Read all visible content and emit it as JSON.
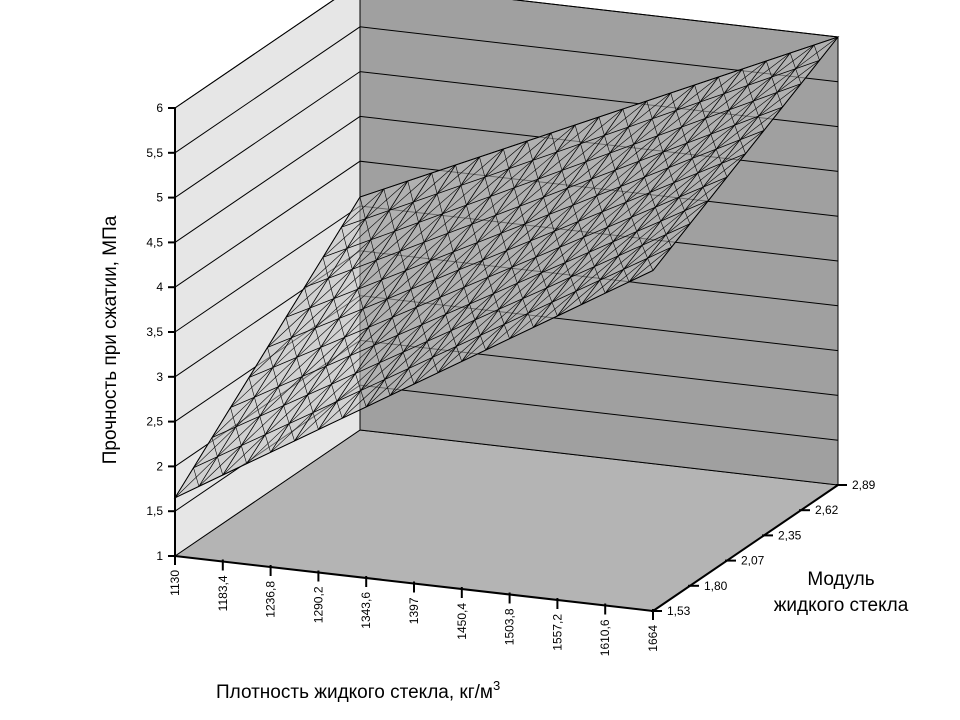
{
  "chart_data": {
    "type": "surface3d",
    "title": "",
    "zlabel": "Прочность при сжатии, МПа",
    "xlabel_main": "Плотность жидкого стекла, кг/м",
    "xlabel_sup": "3",
    "ylabel_line1": "Модуль",
    "ylabel_line2": "жидкого стекла",
    "x_ticks": [
      "1130",
      "1183,4",
      "1236,8",
      "1290,2",
      "1343,6",
      "1397",
      "1450,4",
      "1503,8",
      "1557,2",
      "1610,6",
      "1664"
    ],
    "y_ticks": [
      "1,53",
      "1,80",
      "2,07",
      "2,35",
      "2,62",
      "2,89"
    ],
    "z_ticks": [
      "1",
      "1,5",
      "2",
      "2,5",
      "3",
      "3,5",
      "4",
      "4,5",
      "5",
      "5,5",
      "6"
    ],
    "z_range": [
      1,
      6
    ],
    "surface_corners": {
      "x_min_y_min": 1.65,
      "x_min_y_max": 3.6,
      "x_max_y_min": 4.8,
      "x_max_y_max": 6.0
    },
    "grid": true,
    "colors": {
      "back_wall": "#a0a0a0",
      "side_wall": "#e6e6e6",
      "floor": "#b4b4b4",
      "surface": "#c0c0c0",
      "gridline": "#000000"
    }
  }
}
